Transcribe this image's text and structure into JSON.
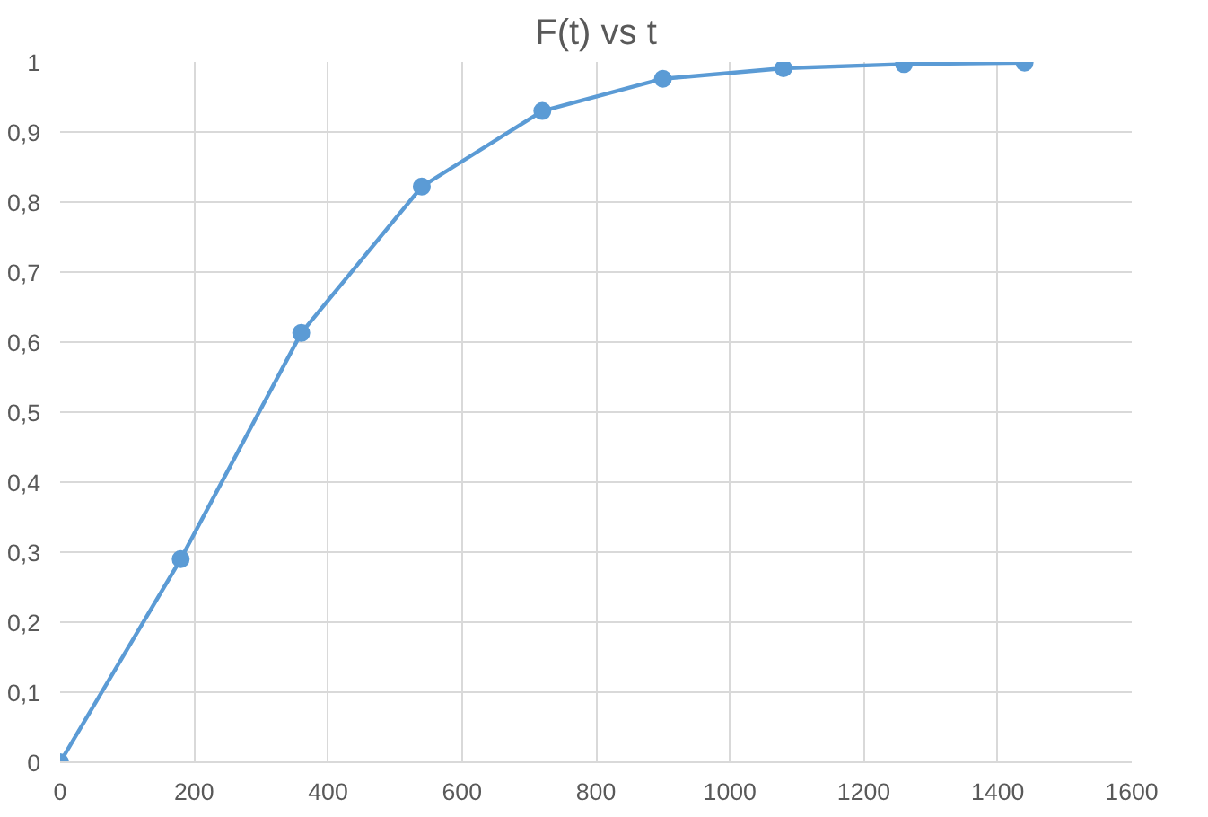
{
  "chart_data": {
    "type": "line",
    "title": "F(t) vs t",
    "x": [
      0,
      180,
      360,
      540,
      720,
      900,
      1080,
      1260,
      1440
    ],
    "series": [
      {
        "color": "#5b9bd5",
        "values": [
          0,
          0.29,
          0.613,
          0.822,
          0.93,
          0.976,
          0.991,
          0.997,
          0.999
        ]
      }
    ],
    "xlim": [
      0,
      1600
    ],
    "xticks": [
      0,
      200,
      400,
      600,
      800,
      1000,
      1200,
      1400,
      1600
    ],
    "ylim": [
      0,
      1
    ],
    "yticks": [
      {
        "value": 0,
        "label": "0"
      },
      {
        "value": 0.1,
        "label": "0,1"
      },
      {
        "value": 0.2,
        "label": "0,2"
      },
      {
        "value": 0.3,
        "label": "0,3"
      },
      {
        "value": 0.4,
        "label": "0,4"
      },
      {
        "value": 0.5,
        "label": "0,5"
      },
      {
        "value": 0.6,
        "label": "0,6"
      },
      {
        "value": 0.7,
        "label": "0,7"
      },
      {
        "value": 0.8,
        "label": "0,8"
      },
      {
        "value": 0.9,
        "label": "0,9"
      },
      {
        "value": 1,
        "label": "1"
      }
    ],
    "grid": true,
    "marker": "circle",
    "line_style": "solid"
  }
}
